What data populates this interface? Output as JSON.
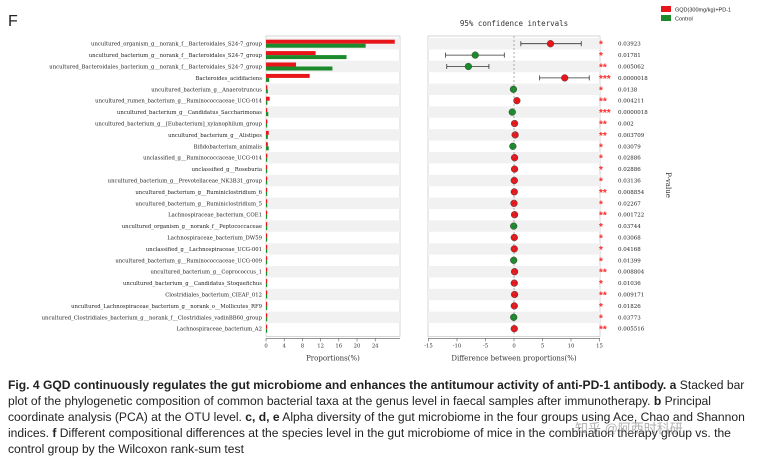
{
  "panel_label": "F",
  "chart_data": {
    "type": "bar",
    "legend": [
      {
        "label": "GQD(300mg/kg)+PD-1",
        "color": "#e8161b"
      },
      {
        "label": "Control",
        "color": "#1b8a2a"
      }
    ],
    "categories": [
      "uncultured_organism_g__norank_f__Bacteroidales_S24-7_group",
      "uncultured_bacterium_g__norank_f__Bacteroidales_S24-7_group",
      "uncultured_Bacteroidales_bacterium_g__norank_f__Bacteroidales_S24-7_group",
      "Bacteroides_acidifaciens",
      "uncultured_bacterium_g__Anaerotruncus",
      "uncultured_rumen_bacterium_g__Ruminococcaceae_UCG-014",
      "uncultured_bacterium_g__Candidatus_Saccharimonas",
      "uncultured_bacterium_g__[Eubacterium]_xylanophilum_group",
      "uncultured_bacterium_g__Alistipes",
      "Bifidobacterium_animalis",
      "unclassified_g__Ruminococcaceae_UCG-014",
      "unclassified_g__Roseburia",
      "uncultured_bacterium_g__Prevotellaceae_NK3B31_group",
      "uncultured_bacterium_g__Ruminiclostridium_6",
      "uncultured_bacterium_g__Ruminiclostridium_5",
      "Lachnospiraceae_bacterium_COE1",
      "uncultured_organism_g__norank_f__Peptococcaceae",
      "Lachnospiraceae_bacterium_DW59",
      "unclassified_g__Lachnospiraceae_UCG-001",
      "uncultured_bacterium_g__Ruminococcaceae_UCG-009",
      "uncultured_bacterium_g__Coprococcus_1",
      "uncultured_bacterium_g__Candidatus_Stoquefichus",
      "Clostridiales_bacterium_CIEAF_012",
      "uncultured_Lachnospiraceae_bacterium_g__norank_o__Mollicutes_RF9",
      "uncultured_Clostridiales_bacterium_g__norank_f__Clostridiales_vadinBB60_group",
      "Lachnospiraceae_bacterium_A2"
    ],
    "series": [
      {
        "name": "GQD(300mg/kg)+PD-1",
        "values": [
          28.3,
          10.9,
          6.6,
          9.6,
          0.3,
          0.8,
          0.2,
          0.3,
          0.6,
          0.4,
          0.3,
          0.2,
          0.1,
          0.2,
          0.1,
          0.15,
          0.05,
          0.1,
          0.1,
          0.05,
          0.2,
          0.1,
          0.2,
          0.1,
          0.05,
          0.1
        ]
      },
      {
        "name": "Control",
        "values": [
          21.9,
          17.7,
          14.6,
          0.7,
          0.4,
          0.3,
          0.5,
          0.2,
          0.4,
          0.6,
          0.2,
          0.1,
          0.05,
          0.15,
          0.1,
          0.05,
          0.1,
          0.05,
          0.05,
          0.1,
          0.1,
          0.05,
          0.1,
          0.05,
          0.1,
          0.05
        ]
      }
    ],
    "difference": [
      6.4,
      -6.8,
      -8.0,
      8.9,
      -0.1,
      0.5,
      -0.3,
      0.1,
      0.2,
      -0.2,
      0.1,
      0.1,
      0.05,
      0.05,
      0.0,
      0.1,
      -0.05,
      0.05,
      0.05,
      -0.05,
      0.1,
      0.05,
      0.1,
      0.05,
      -0.05,
      0.05
    ],
    "ci_low": [
      1.2,
      -12.0,
      -11.8,
      4.5,
      -0.3,
      0.2,
      -0.6,
      -0.1,
      0.0,
      -0.4,
      -0.1,
      -0.1,
      -0.1,
      -0.1,
      -0.2,
      0.0,
      -0.2,
      -0.1,
      -0.1,
      -0.2,
      0.0,
      -0.1,
      0.0,
      -0.1,
      -0.2,
      -0.1
    ],
    "ci_high": [
      11.8,
      -1.7,
      -4.4,
      13.2,
      0.1,
      0.8,
      0.0,
      0.3,
      0.4,
      0.0,
      0.3,
      0.3,
      0.2,
      0.2,
      0.2,
      0.2,
      0.1,
      0.2,
      0.2,
      0.1,
      0.2,
      0.2,
      0.2,
      0.2,
      0.1,
      0.2
    ],
    "p_values": [
      "0.03923",
      "0.01781",
      "0.005062",
      "0.0000018",
      "0.0138",
      "0.004211",
      "0.0000018",
      "0.002",
      "0.003709",
      "0.03079",
      "0.02886",
      "0.02886",
      "0.03136",
      "0.008854",
      "0.02267",
      "0.001722",
      "0.03744",
      "0.03068",
      "0.04168",
      "0.01399",
      "0.008804",
      "0.01036",
      "0.009171",
      "0.01826",
      "0.03773",
      "0.005516"
    ],
    "significance": [
      "*",
      "*",
      "**",
      "***",
      "*",
      "**",
      "***",
      "**",
      "**",
      "*",
      "*",
      "*",
      "*",
      "**",
      "*",
      "**",
      "*",
      "*",
      "*",
      "*",
      "**",
      "*",
      "**",
      "*",
      "*",
      "**"
    ],
    "xlabel": "Proportions(%)",
    "xticks": [
      0,
      4,
      8,
      12,
      16,
      20,
      24
    ],
    "xlim": [
      0,
      30
    ],
    "diff_title": "95% confidence intervals",
    "diff_xlabel": "Difference between proportions(%)",
    "diff_xticks": [
      -15,
      -10,
      -5,
      0,
      5,
      10,
      15
    ],
    "diff_xlim": [
      -15,
      15
    ],
    "pvalue_title": "P-value"
  },
  "caption": {
    "title": "Fig. 4 GQD continuously regulates the gut microbiome and enhances the antitumour activity of anti-PD-1 antibody.",
    "parts": [
      {
        "letter": "a",
        "text": "Stacked bar plot of the phylogenetic composition of common bacterial taxa at the genus level in faecal samples after immunotherapy."
      },
      {
        "letter": "b",
        "text": "Principal coordinate analysis (PCA) at the OTU level."
      },
      {
        "letter": "c, d, e",
        "text": "Alpha diversity of the gut microbiome in the four groups using Ace, Chao and Shannon indices."
      },
      {
        "letter": "f",
        "text": "Different compositional differences at the species level in the gut microbiome of mice in the combination therapy group vs. the control group by the Wilcoxon rank-sum test"
      }
    ]
  },
  "watermark": "知乎 @阿西时科研"
}
